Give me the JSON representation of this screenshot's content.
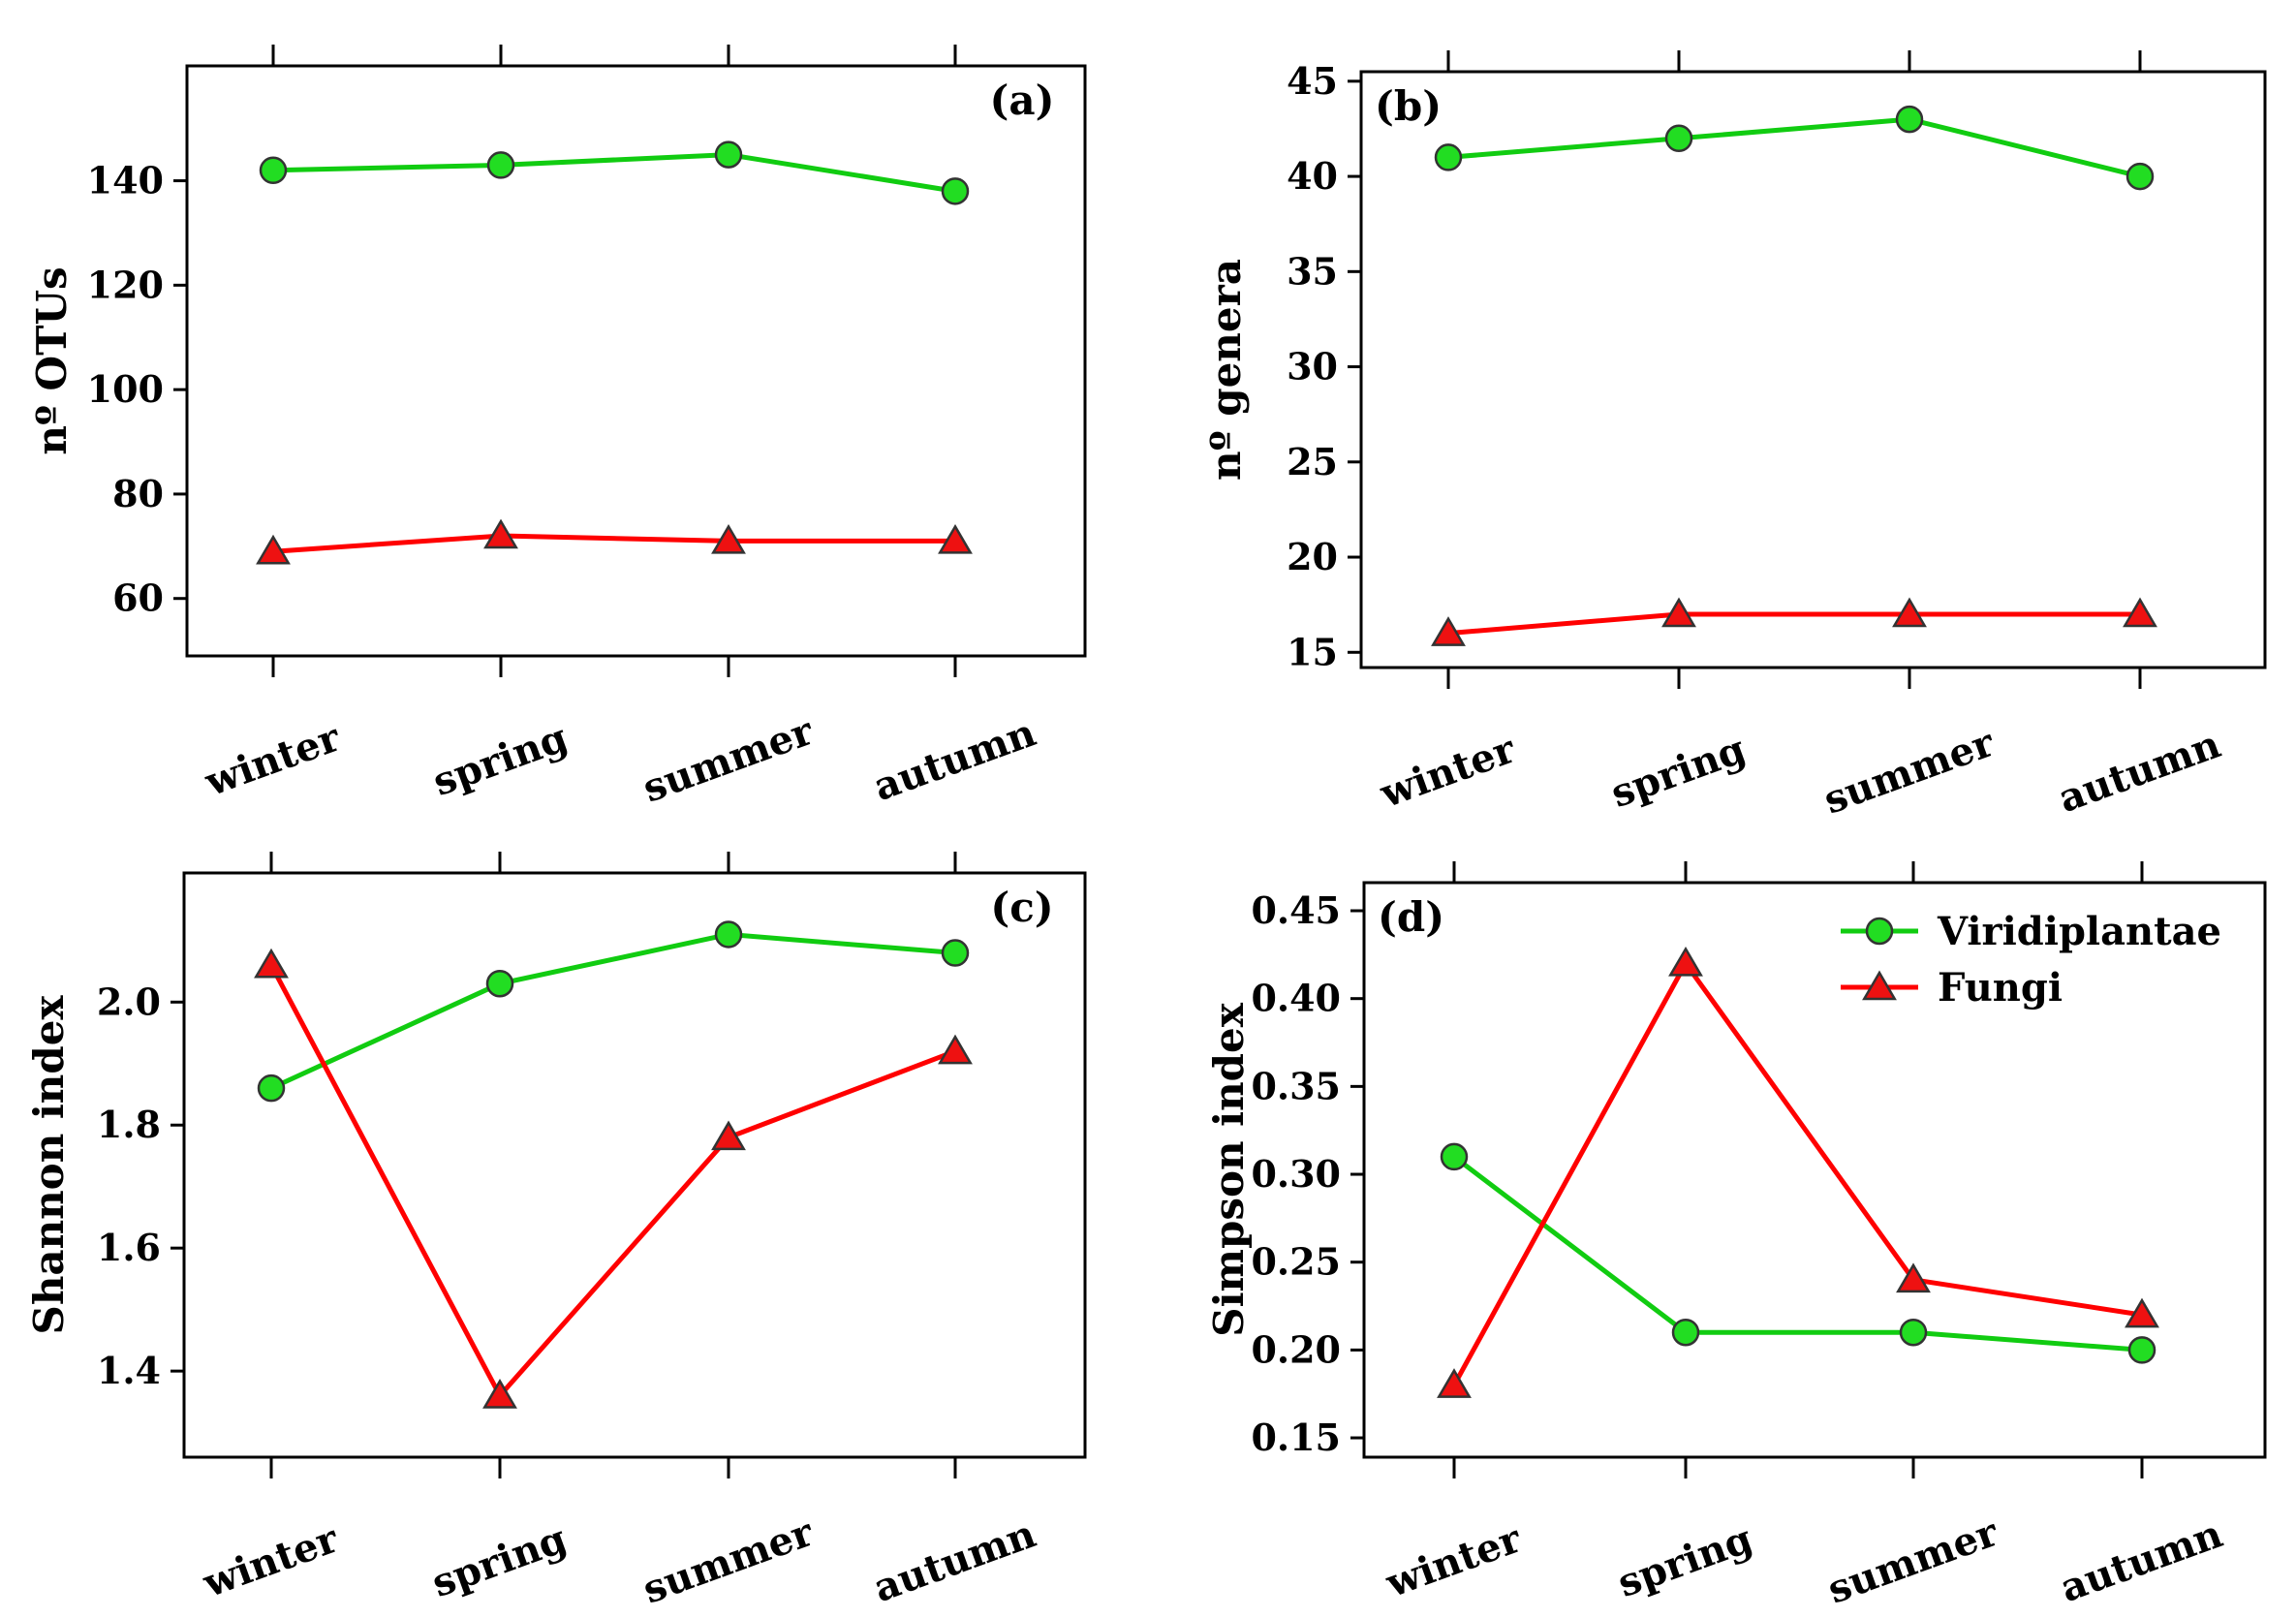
{
  "chart_data": [
    {
      "type": "line",
      "panel": "(a)",
      "categories": [
        "winter",
        "spring",
        "summer",
        "autumn"
      ],
      "ylabel": "nº OTUs",
      "ylim": [
        49,
        162
      ],
      "yticks": [
        60,
        80,
        100,
        120,
        140
      ],
      "series": [
        {
          "name": "Viridiplantae",
          "values": [
            142,
            143,
            145,
            138
          ]
        },
        {
          "name": "Fungi",
          "values": [
            69,
            72,
            71,
            71
          ]
        }
      ]
    },
    {
      "type": "line",
      "panel": "(b)",
      "categories": [
        "winter",
        "spring",
        "summer",
        "autumn"
      ],
      "ylabel": "nº genera",
      "ylim": [
        14.2,
        45.5
      ],
      "yticks": [
        15,
        20,
        25,
        30,
        35,
        40,
        45
      ],
      "series": [
        {
          "name": "Viridiplantae",
          "values": [
            41,
            42,
            43,
            40
          ]
        },
        {
          "name": "Fungi",
          "values": [
            16,
            17,
            17,
            17
          ]
        }
      ]
    },
    {
      "type": "line",
      "panel": "(c)",
      "categories": [
        "winter",
        "spring",
        "summer",
        "autumn"
      ],
      "ylabel": "Shannon index",
      "ylim": [
        1.26,
        2.21
      ],
      "yticks": [
        1.4,
        1.6,
        1.8,
        2.0
      ],
      "tick_format": 1,
      "series": [
        {
          "name": "Viridiplantae",
          "values": [
            1.86,
            2.03,
            2.11,
            2.08
          ]
        },
        {
          "name": "Fungi",
          "values": [
            2.06,
            1.36,
            1.78,
            1.92
          ]
        }
      ]
    },
    {
      "type": "line",
      "panel": "(d)",
      "categories": [
        "winter",
        "spring",
        "summer",
        "autumn"
      ],
      "ylabel": "Simpson index",
      "ylim": [
        0.139,
        0.466
      ],
      "yticks": [
        0.15,
        0.2,
        0.25,
        0.3,
        0.35,
        0.4,
        0.45
      ],
      "tick_format": 2,
      "legend": "top-right",
      "series": [
        {
          "name": "Viridiplantae",
          "values": [
            0.31,
            0.21,
            0.21,
            0.2
          ]
        },
        {
          "name": "Fungi",
          "values": [
            0.18,
            0.42,
            0.24,
            0.22
          ]
        }
      ]
    }
  ],
  "legend": {
    "items": [
      "Viridiplantae",
      "Fungi"
    ]
  },
  "colors": {
    "green": "#22dd22",
    "green_line": "#11cc11",
    "red": "#ee1111",
    "red_line": "#ff0000",
    "marker_edge": "#333333"
  }
}
